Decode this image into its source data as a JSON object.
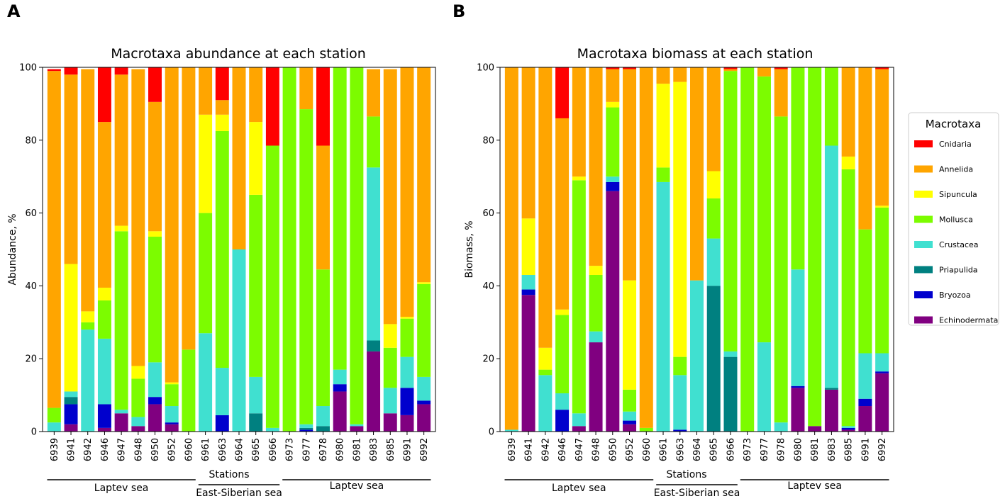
{
  "panels": [
    {
      "letter": "A"
    },
    {
      "letter": "B"
    }
  ],
  "chart_data": [
    {
      "type": "bar",
      "stacked": true,
      "title": "Macrotaxa abundance at each station",
      "xlabel": "Stations",
      "ylabel": "Abundance, %",
      "ylim": [
        0,
        100
      ],
      "yticks": [
        0,
        20,
        40,
        60,
        80,
        100
      ],
      "categories": [
        "6939",
        "6941",
        "6942",
        "6946",
        "6947",
        "6948",
        "6950",
        "6952",
        "6960",
        "6961",
        "6963",
        "6964",
        "6965",
        "6966",
        "6973",
        "6977",
        "6978",
        "6980",
        "6981",
        "6983",
        "6985",
        "6991",
        "6992"
      ],
      "regions": [
        {
          "label": "Laptev sea",
          "from": 0,
          "to": 8
        },
        {
          "label": "East-Siberian sea",
          "from": 9,
          "to": 13
        },
        {
          "label": "Laptev sea",
          "from": 14,
          "to": 22
        }
      ],
      "series": [
        {
          "name": "Echinodermata",
          "values": [
            0,
            2,
            0,
            1,
            5,
            1.5,
            7.5,
            2,
            0,
            0,
            0,
            0,
            0,
            0,
            0,
            0,
            0,
            11,
            1.5,
            22,
            5,
            4.5,
            7.5
          ]
        },
        {
          "name": "Bryozoa",
          "values": [
            0,
            5.5,
            0,
            6.5,
            0,
            0,
            2,
            0.5,
            0,
            0,
            4.5,
            0,
            0,
            0,
            0,
            0.5,
            0,
            2,
            0,
            0,
            0,
            7.5,
            1
          ]
        },
        {
          "name": "Priapulida",
          "values": [
            0,
            2,
            0,
            0,
            0,
            0,
            0,
            0,
            0,
            0,
            0,
            0,
            5,
            0,
            0,
            0.5,
            1.5,
            0,
            0,
            3,
            0,
            0,
            0
          ]
        },
        {
          "name": "Crustacea",
          "values": [
            2.5,
            1.5,
            28,
            18,
            1,
            2.5,
            9.5,
            4.5,
            0,
            27,
            13,
            50,
            10,
            1,
            0,
            1,
            5.5,
            4,
            0.5,
            47.5,
            7,
            8.5,
            6.5
          ]
        },
        {
          "name": "Mollusca",
          "values": [
            4,
            0,
            2,
            10.5,
            49,
            10.5,
            34.5,
            6,
            22.5,
            33,
            65,
            0,
            50,
            77.5,
            100,
            86.5,
            37.5,
            83,
            98,
            14,
            11,
            10.5,
            25.5
          ]
        },
        {
          "name": "Sipuncula",
          "values": [
            0,
            35,
            3,
            3.5,
            1.5,
            3.5,
            1.5,
            0.5,
            0,
            27,
            4.5,
            0,
            20,
            0,
            0,
            0,
            0,
            0,
            0,
            0,
            6.5,
            0.5,
            0.5
          ]
        },
        {
          "name": "Annelida",
          "values": [
            92.5,
            52,
            66.5,
            45.5,
            41.5,
            81.5,
            35.5,
            86.5,
            77.5,
            13,
            4,
            50,
            15,
            0,
            0,
            11.5,
            34,
            0,
            0,
            13,
            70,
            69,
            59
          ]
        },
        {
          "name": "Cnidaria",
          "values": [
            0.5,
            2,
            0,
            15,
            2,
            0,
            9.5,
            0.5,
            0,
            0,
            9,
            0,
            0,
            21.5,
            0,
            0,
            21.5,
            0,
            0,
            0,
            0,
            0,
            0
          ]
        }
      ]
    },
    {
      "type": "bar",
      "stacked": true,
      "title": "Macrotaxa biomass at each station",
      "xlabel": "Stations",
      "ylabel": "Biomass, %",
      "ylim": [
        0,
        100
      ],
      "yticks": [
        0,
        20,
        40,
        60,
        80,
        100
      ],
      "categories": [
        "6939",
        "6941",
        "6942",
        "6946",
        "6947",
        "6948",
        "6950",
        "6952",
        "6960",
        "6961",
        "6963",
        "6964",
        "6965",
        "6966",
        "6973",
        "6977",
        "6978",
        "6980",
        "6981",
        "6983",
        "6985",
        "6991",
        "6992"
      ],
      "regions": [
        {
          "label": "Laptev sea",
          "from": 0,
          "to": 8
        },
        {
          "label": "East-Siberian sea",
          "from": 9,
          "to": 13
        },
        {
          "label": "Laptev sea",
          "from": 14,
          "to": 22
        }
      ],
      "series": [
        {
          "name": "Echinodermata",
          "values": [
            0,
            37.5,
            0,
            0,
            1.5,
            24.5,
            66,
            2,
            0,
            0,
            0,
            0,
            0,
            0,
            0,
            0,
            0,
            12,
            1.5,
            11.5,
            0.5,
            7,
            16
          ]
        },
        {
          "name": "Bryozoa",
          "values": [
            0,
            1.5,
            0,
            6,
            0,
            0,
            2.5,
            1,
            0,
            0,
            0.5,
            0,
            0,
            0,
            0,
            0,
            0,
            0.5,
            0,
            0,
            0.5,
            2,
            0.5
          ]
        },
        {
          "name": "Priapulida",
          "values": [
            0,
            0,
            0,
            0,
            0,
            0,
            0,
            0,
            0,
            0,
            0,
            0,
            40,
            20.5,
            0,
            0,
            0,
            0,
            0,
            0.5,
            0,
            0,
            0
          ]
        },
        {
          "name": "Crustacea",
          "values": [
            0.5,
            4,
            15.5,
            4.5,
            3.5,
            3,
            1.5,
            2.5,
            0,
            68.5,
            15,
            41.5,
            13,
            1.5,
            0,
            24.5,
            2.5,
            32,
            0,
            66.5,
            0.5,
            12.5,
            5
          ]
        },
        {
          "name": "Mollusca",
          "values": [
            0,
            0,
            1.5,
            21.5,
            64,
            15.5,
            19,
            6,
            1,
            4,
            5,
            0,
            11,
            77,
            100,
            73,
            84,
            55.5,
            98.5,
            21.5,
            70.5,
            34,
            40
          ]
        },
        {
          "name": "Sipuncula",
          "values": [
            0,
            15.5,
            6,
            1.5,
            1,
            2.5,
            1.5,
            30,
            0,
            23,
            75.5,
            0,
            7.5,
            0,
            0,
            0,
            0,
            0,
            0,
            0,
            3.5,
            0,
            0.5
          ]
        },
        {
          "name": "Annelida",
          "values": [
            99.5,
            41.5,
            77,
            52.5,
            30,
            54.5,
            9,
            58,
            99,
            4.5,
            4,
            58.5,
            28.5,
            0.5,
            0,
            2.5,
            13,
            0,
            0,
            0,
            24.5,
            44.5,
            37.5
          ]
        },
        {
          "name": "Cnidaria",
          "values": [
            0,
            0,
            0,
            14,
            0,
            0,
            0.5,
            0.5,
            0,
            0,
            0,
            0,
            0,
            1,
            0,
            0,
            0.5,
            0,
            0,
            0,
            0,
            0,
            0.5
          ]
        }
      ]
    }
  ],
  "legend": {
    "title": "Macrotaxa",
    "items": [
      {
        "name": "Cnidaria",
        "color": "#ff0000"
      },
      {
        "name": "Annelida",
        "color": "#ffa500"
      },
      {
        "name": "Sipuncula",
        "color": "#ffff00"
      },
      {
        "name": "Mollusca",
        "color": "#7cfc00"
      },
      {
        "name": "Crustacea",
        "color": "#40e0d0"
      },
      {
        "name": "Priapulida",
        "color": "#008080"
      },
      {
        "name": "Bryozoa",
        "color": "#0000cd"
      },
      {
        "name": "Echinodermata",
        "color": "#800080"
      }
    ]
  }
}
